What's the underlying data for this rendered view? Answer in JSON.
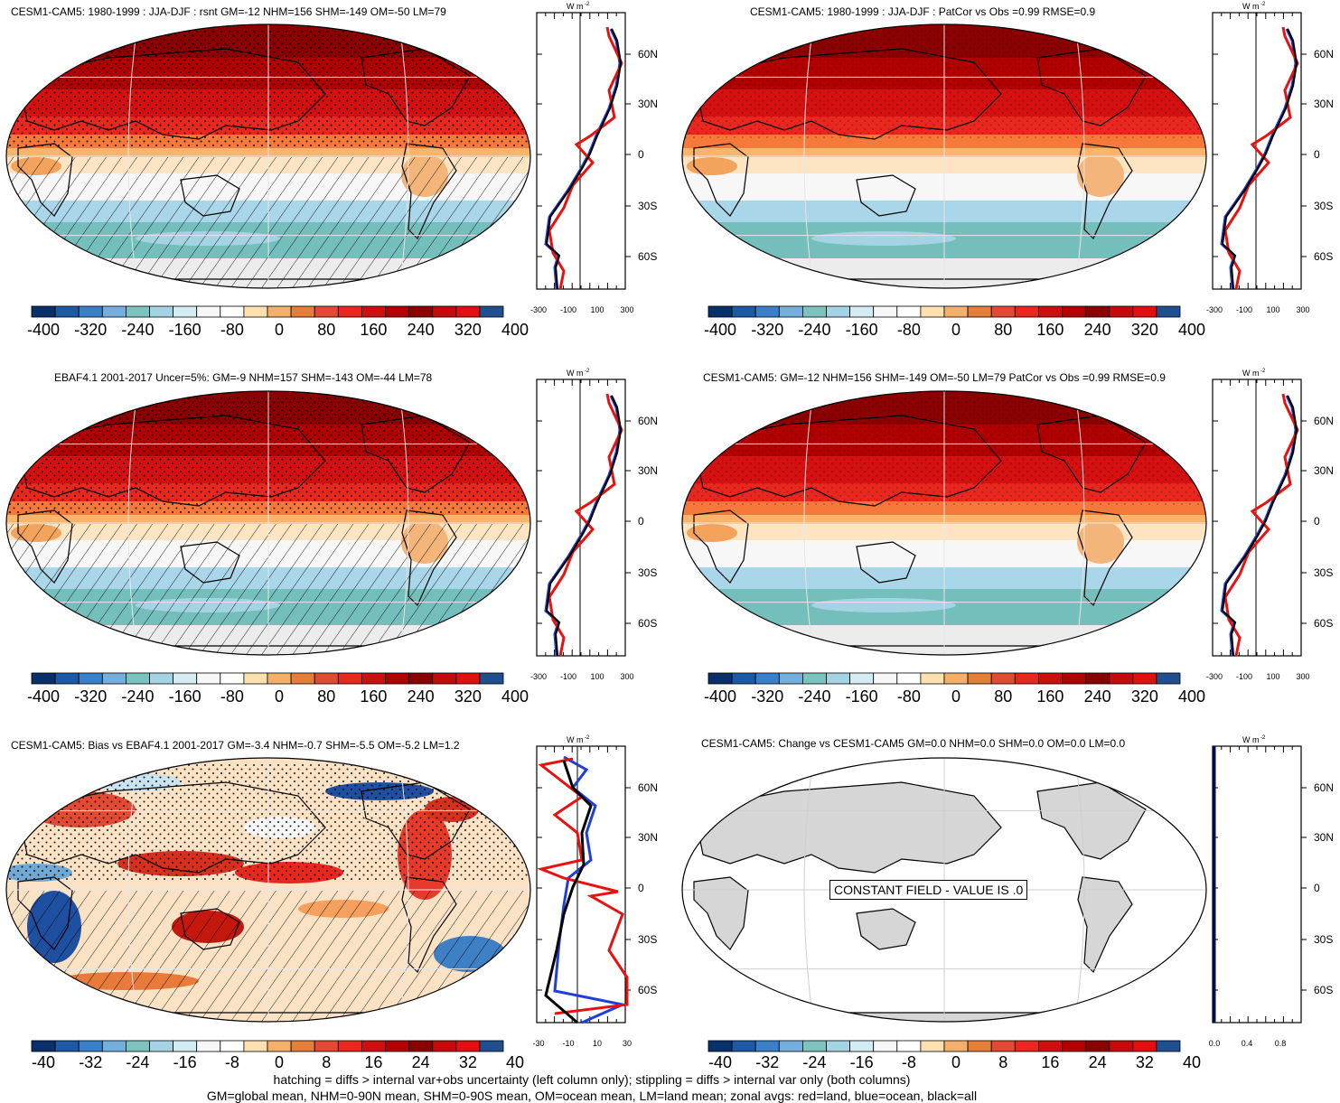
{
  "panels": [
    {
      "title": "CESM1-CAM5: 1980-1999 : JJA-DJF : rsnt GM=-12 NHM=156 SHM=-149 OM=-50 LM=79",
      "style": "field",
      "hatch": true
    },
    {
      "title": "CESM1-CAM5: 1980-1999 : JJA-DJF : PatCor vs Obs =0.99 RMSE=0.9",
      "style": "field",
      "hatch": false
    },
    {
      "title": "EBAF4.1 2001-2017 Uncer=5%: GM=-9 NHM=157 SHM=-143 OM=-44 LM=78",
      "style": "field",
      "hatch": true
    },
    {
      "title": "CESM1-CAM5: GM=-12 NHM=156 SHM=-149 OM=-50 LM=79 PatCor vs Obs =0.99 RMSE=0.9",
      "style": "field",
      "hatch": false
    },
    {
      "title": "CESM1-CAM5: Bias vs EBAF4.1 2001-2017 GM=-3.4 NHM=-0.7 SHM=-5.5 OM=-5.2 LM=1.2",
      "style": "bias",
      "hatch": true
    },
    {
      "title": "CESM1-CAM5: Change vs CESM1-CAM5 GM=0.0 NHM=0.0 SHM=0.0 OM=0.0 LM=0.0",
      "style": "const",
      "hatch": false
    }
  ],
  "colorbar_field_labels": [
    "-400",
    "-320",
    "-240",
    "-160",
    "-80",
    "0",
    "80",
    "160",
    "240",
    "320",
    "400"
  ],
  "colorbar_bias_labels": [
    "-40",
    "-32",
    "-24",
    "-16",
    "-8",
    "0",
    "8",
    "16",
    "24",
    "32",
    "40"
  ],
  "colorbar_colors": [
    "#08306b",
    "#1c5aa6",
    "#3a80c8",
    "#73aedc",
    "#7cc3c0",
    "#a4d4e4",
    "#d2ecf2",
    "#f7f7f7",
    "#ffffff",
    "#fde0b0",
    "#f4b06a",
    "#e47f3a",
    "#e34a33",
    "#e8271e",
    "#cc0f0f",
    "#b00000",
    "#8b0000",
    "#c40a0a",
    "#e01010",
    "#1f4f8f"
  ],
  "zonal_units": "W m",
  "zonal_units_sup": "-2",
  "lat_labels": [
    "60N",
    "30N",
    "0",
    "30S",
    "60S"
  ],
  "zonal_x_field": [
    "-300",
    "-100",
    "100",
    "300"
  ],
  "zonal_x_bias": [
    "-30",
    "-10",
    "10",
    "30"
  ],
  "zonal_x_const": [
    "0.0",
    "0.4",
    "0.8"
  ],
  "constant_field_text": "CONSTANT FIELD - VALUE IS .0",
  "footer_line1": "hatching = diffs > internal var+obs uncertainty (left column only); stippling = diffs > internal var only (both columns)",
  "footer_line2": "GM=global mean, NHM=0-90N mean, SHM=0-90S mean, OM=ocean mean, LM=land mean; zonal avgs: red=land, blue=ocean, black=all",
  "zonal_colors": {
    "land": "#e8110f",
    "ocean": "#1f3fd8",
    "all": "#000000"
  }
}
